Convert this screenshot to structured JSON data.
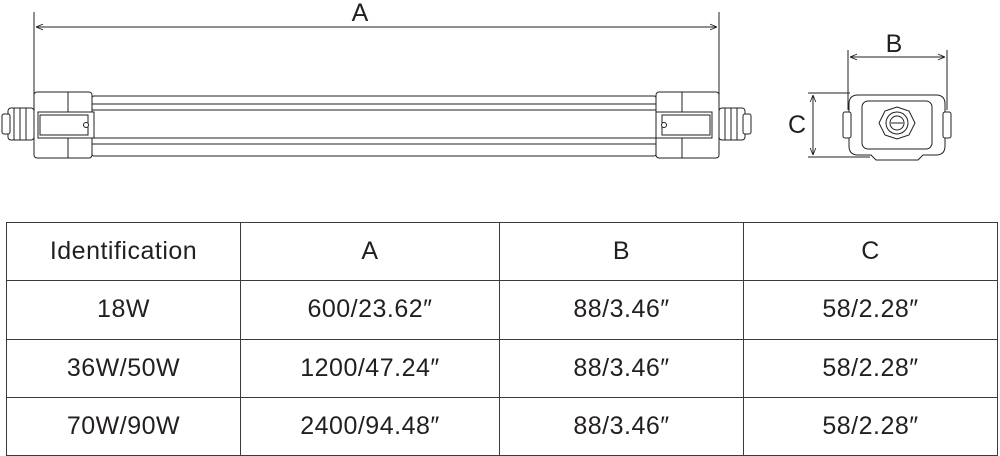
{
  "drawing": {
    "labels": {
      "a": "A",
      "b": "B",
      "c": "C"
    }
  },
  "table": {
    "headers": [
      "Identification",
      "A",
      "B",
      "C"
    ],
    "rows": [
      [
        "18W",
        "600/23.62″",
        "88/3.46″",
        "58/2.28″"
      ],
      [
        "36W/50W",
        "1200/47.24″",
        "88/3.46″",
        "58/2.28″"
      ],
      [
        "70W/90W",
        "2400/94.48″",
        "88/3.46″",
        "58/2.28″"
      ]
    ]
  }
}
